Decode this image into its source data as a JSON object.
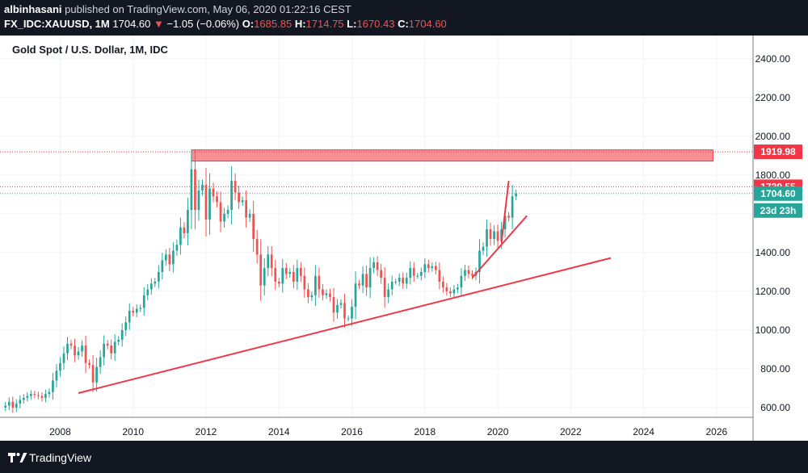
{
  "header": {
    "user": "albinhasani",
    "published": "published on TradingView.com, May 06, 2020 01:22:16 CEST",
    "symbol": "FX_IDC:XAUUSD, 1M",
    "last": "1704.60",
    "change_arrow": "▼",
    "change": "−1.05 (−0.06%)",
    "o_label": "O:",
    "o": "1685.85",
    "h_label": "H:",
    "h": "1714.75",
    "l_label": "L:",
    "l": "1670.43",
    "c_label": "C:",
    "c": "1704.60"
  },
  "footer": {
    "brand": "TradingView"
  },
  "colors": {
    "up": "#26a69a",
    "down": "#ef5350",
    "drawing": "#f23645",
    "zone": "#f77c80"
  },
  "chart_data": {
    "type": "candlestick",
    "title": "Gold Spot / U.S. Dollar, 1M, IDC",
    "x_ticks": [
      "2008",
      "2010",
      "2012",
      "2014",
      "2016",
      "2018",
      "2020",
      "2022",
      "2024",
      "2026"
    ],
    "y_ticks": [
      "600.00",
      "800.00",
      "1000.00",
      "1200.00",
      "1400.00",
      "1600.00",
      "1800.00",
      "2000.00",
      "2200.00",
      "2400.00"
    ],
    "ylim": [
      550,
      2520
    ],
    "xlim": [
      2006.35,
      2027.0
    ],
    "price_labels": [
      {
        "text": "1919.98",
        "value": 1919.98,
        "color": "#f23645"
      },
      {
        "text": "1739.55",
        "value": 1739.55,
        "color": "#f23645"
      },
      {
        "text": "1704.60",
        "value": 1704.6,
        "color": "#26a69a"
      }
    ],
    "countdown": "23d 23h",
    "resistance_zone": {
      "x_start": 2011.6,
      "x_end": 2025.9,
      "y_low": 1872,
      "y_high": 1930
    },
    "trendlines": [
      {
        "x1": 2008.5,
        "y1": 675,
        "x2": 2023.1,
        "y2": 1372
      },
      {
        "x1": 2019.3,
        "y1": 1270,
        "x2": 2020.8,
        "y2": 1590
      },
      {
        "x1": 2020.1,
        "y1": 1450,
        "x2": 2020.3,
        "y2": 1770
      }
    ],
    "closes": [
      [
        2006.5,
        610
      ],
      [
        2006.6,
        630
      ],
      [
        2006.7,
        600
      ],
      [
        2006.8,
        620
      ],
      [
        2006.9,
        640
      ],
      [
        2007.0,
        650
      ],
      [
        2007.1,
        660
      ],
      [
        2007.2,
        670
      ],
      [
        2007.3,
        665
      ],
      [
        2007.4,
        660
      ],
      [
        2007.5,
        650
      ],
      [
        2007.6,
        670
      ],
      [
        2007.7,
        680
      ],
      [
        2007.8,
        740
      ],
      [
        2007.9,
        790
      ],
      [
        2008.0,
        830
      ],
      [
        2008.1,
        880
      ],
      [
        2008.2,
        930
      ],
      [
        2008.3,
        920
      ],
      [
        2008.4,
        870
      ],
      [
        2008.5,
        890
      ],
      [
        2008.6,
        920
      ],
      [
        2008.7,
        830
      ],
      [
        2008.8,
        820
      ],
      [
        2008.9,
        730
      ],
      [
        2009.0,
        810
      ],
      [
        2009.1,
        860
      ],
      [
        2009.2,
        930
      ],
      [
        2009.3,
        920
      ],
      [
        2009.4,
        880
      ],
      [
        2009.5,
        940
      ],
      [
        2009.6,
        950
      ],
      [
        2009.7,
        1000
      ],
      [
        2009.8,
        1040
      ],
      [
        2009.9,
        1100
      ],
      [
        2010.0,
        1090
      ],
      [
        2010.1,
        1110
      ],
      [
        2010.2,
        1115
      ],
      [
        2010.3,
        1180
      ],
      [
        2010.4,
        1210
      ],
      [
        2010.5,
        1240
      ],
      [
        2010.6,
        1250
      ],
      [
        2010.7,
        1300
      ],
      [
        2010.8,
        1360
      ],
      [
        2010.9,
        1390
      ],
      [
        2011.0,
        1340
      ],
      [
        2011.1,
        1410
      ],
      [
        2011.2,
        1440
      ],
      [
        2011.3,
        1530
      ],
      [
        2011.4,
        1500
      ],
      [
        2011.5,
        1620
      ],
      [
        2011.6,
        1830
      ],
      [
        2011.7,
        1620
      ],
      [
        2011.8,
        1720
      ],
      [
        2011.9,
        1750
      ],
      [
        2012.0,
        1570
      ],
      [
        2012.1,
        1730
      ],
      [
        2012.2,
        1690
      ],
      [
        2012.3,
        1660
      ],
      [
        2012.4,
        1560
      ],
      [
        2012.5,
        1600
      ],
      [
        2012.6,
        1620
      ],
      [
        2012.7,
        1770
      ],
      [
        2012.8,
        1710
      ],
      [
        2012.9,
        1660
      ],
      [
        2013.0,
        1670
      ],
      [
        2013.1,
        1580
      ],
      [
        2013.2,
        1600
      ],
      [
        2013.3,
        1470
      ],
      [
        2013.4,
        1390
      ],
      [
        2013.5,
        1230
      ],
      [
        2013.6,
        1320
      ],
      [
        2013.7,
        1390
      ],
      [
        2013.8,
        1320
      ],
      [
        2013.9,
        1250
      ],
      [
        2014.0,
        1240
      ],
      [
        2014.1,
        1320
      ],
      [
        2014.2,
        1290
      ],
      [
        2014.3,
        1300
      ],
      [
        2014.4,
        1250
      ],
      [
        2014.5,
        1320
      ],
      [
        2014.6,
        1280
      ],
      [
        2014.7,
        1210
      ],
      [
        2014.8,
        1170
      ],
      [
        2014.9,
        1180
      ],
      [
        2015.0,
        1280
      ],
      [
        2015.1,
        1210
      ],
      [
        2015.2,
        1180
      ],
      [
        2015.3,
        1190
      ],
      [
        2015.4,
        1170
      ],
      [
        2015.5,
        1090
      ],
      [
        2015.6,
        1130
      ],
      [
        2015.7,
        1140
      ],
      [
        2015.8,
        1060
      ],
      [
        2015.9,
        1060
      ],
      [
        2016.0,
        1120
      ],
      [
        2016.1,
        1240
      ],
      [
        2016.2,
        1230
      ],
      [
        2016.3,
        1290
      ],
      [
        2016.4,
        1220
      ],
      [
        2016.5,
        1320
      ],
      [
        2016.6,
        1350
      ],
      [
        2016.7,
        1310
      ],
      [
        2016.8,
        1270
      ],
      [
        2016.9,
        1170
      ],
      [
        2017.0,
        1210
      ],
      [
        2017.1,
        1250
      ],
      [
        2017.2,
        1250
      ],
      [
        2017.3,
        1270
      ],
      [
        2017.4,
        1240
      ],
      [
        2017.5,
        1270
      ],
      [
        2017.6,
        1320
      ],
      [
        2017.7,
        1280
      ],
      [
        2017.8,
        1280
      ],
      [
        2017.9,
        1300
      ],
      [
        2018.0,
        1340
      ],
      [
        2018.1,
        1320
      ],
      [
        2018.2,
        1330
      ],
      [
        2018.3,
        1310
      ],
      [
        2018.4,
        1250
      ],
      [
        2018.5,
        1220
      ],
      [
        2018.6,
        1200
      ],
      [
        2018.7,
        1190
      ],
      [
        2018.8,
        1210
      ],
      [
        2018.9,
        1220
      ],
      [
        2019.0,
        1280
      ],
      [
        2019.1,
        1310
      ],
      [
        2019.2,
        1290
      ],
      [
        2019.3,
        1280
      ],
      [
        2019.4,
        1300
      ],
      [
        2019.5,
        1410
      ],
      [
        2019.6,
        1430
      ],
      [
        2019.7,
        1520
      ],
      [
        2019.8,
        1470
      ],
      [
        2019.9,
        1510
      ],
      [
        2020.0,
        1460
      ],
      [
        2020.1,
        1520
      ],
      [
        2020.2,
        1590
      ],
      [
        2020.3,
        1580
      ],
      [
        2020.4,
        1690
      ],
      [
        2020.5,
        1704
      ]
    ]
  }
}
